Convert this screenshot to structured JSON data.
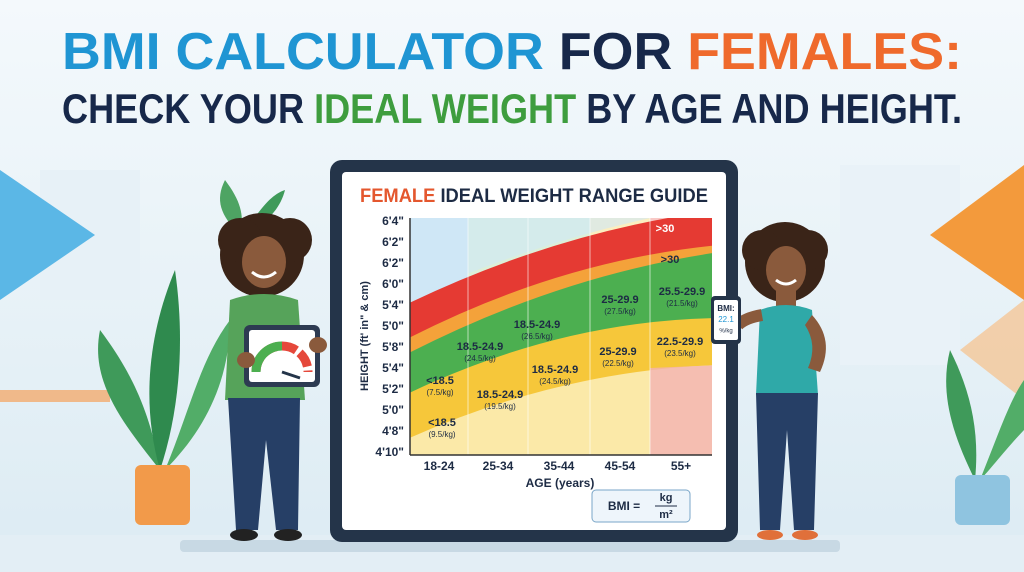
{
  "header": {
    "line1": [
      "BMI CALCULATOR",
      "FOR",
      "FEMALES:"
    ],
    "line2": [
      "CHECK YOUR",
      "IDEAL WEIGHT",
      "BY AGE AND HEIGHT."
    ]
  },
  "guide": {
    "title": [
      "FEMALE",
      "IDEAL WEIGHT RANGE GUIDE"
    ],
    "y_axis_label": "HEIGHT (ft' in\" & cm)",
    "y_labels": [
      "6'4\"",
      "6'2\"",
      "6'2\"",
      "6'0\"",
      "5'4\"",
      "5'0\"",
      "5'8\"",
      "5'4\"",
      "5'2\"",
      "5'0\"",
      "4'8\"",
      "4'10\""
    ],
    "x_labels": [
      "18-24",
      "25-34",
      "35-44",
      "45-54",
      "55+"
    ],
    "x_axis_label": "AGE (years)",
    "band_labels": [
      {
        "range": ">30"
      },
      {
        "range": ">30"
      },
      {
        "range": "25-29.9",
        "note": "(27.5/kg)"
      },
      {
        "range": "25.5-29.9",
        "note": "(21.5/kg)"
      },
      {
        "range": "18.5-24.9",
        "note": "(26.5/kg)"
      },
      {
        "range": "18.5-24.9",
        "note": "(24.5/kg)"
      },
      {
        "range": "25-29.9",
        "note": "(22.5/kg)"
      },
      {
        "range": "22.5-29.9",
        "note": "(23.5/kg)"
      },
      {
        "range": "<18.5",
        "note": "(7.5/kg)"
      },
      {
        "range": "18.5-24.9",
        "note": "(19.5/kg)"
      },
      {
        "range": "18.5-24.9",
        "note": "(24.5/kg)"
      },
      {
        "range": "<18.5",
        "note": "(9.5/kg)"
      }
    ],
    "formula": {
      "lhs": "BMI =",
      "numerator": "kg",
      "denominator": "m²"
    }
  },
  "phone": {
    "label": "BMI:",
    "value": "22.1",
    "unit": "%/kg"
  }
}
